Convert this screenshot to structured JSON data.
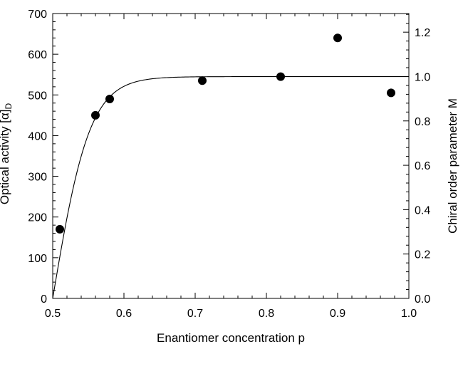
{
  "chart_data": {
    "type": "scatter",
    "title": "",
    "xlabel": "Enantiomer concentration p",
    "ylabel_left_text": "Optical activity [α]",
    "ylabel_left_sub": "D",
    "ylabel_right": "Chiral order parameter M",
    "xlim": [
      0.5,
      1.0
    ],
    "ylim_left": [
      0,
      700
    ],
    "ylim_right": [
      0.0,
      1.284
    ],
    "x_ticks": [
      "0.5",
      "0.6",
      "0.7",
      "0.8",
      "0.9",
      "1.0"
    ],
    "y_left_ticks": [
      "0",
      "100",
      "200",
      "300",
      "400",
      "500",
      "600",
      "700"
    ],
    "y_right_ticks": [
      "0.0",
      "0.2",
      "0.4",
      "0.6",
      "0.8",
      "1.0",
      "1.2"
    ],
    "grid": false,
    "legend": "none",
    "series": [
      {
        "type": "scatter",
        "points": [
          {
            "x": 0.51,
            "y": 170
          },
          {
            "x": 0.56,
            "y": 450
          },
          {
            "x": 0.58,
            "y": 490
          },
          {
            "x": 0.71,
            "y": 535
          },
          {
            "x": 0.82,
            "y": 545
          },
          {
            "x": 0.9,
            "y": 640
          },
          {
            "x": 0.975,
            "y": 505
          }
        ]
      },
      {
        "type": "line",
        "plateau": 545
      }
    ]
  }
}
